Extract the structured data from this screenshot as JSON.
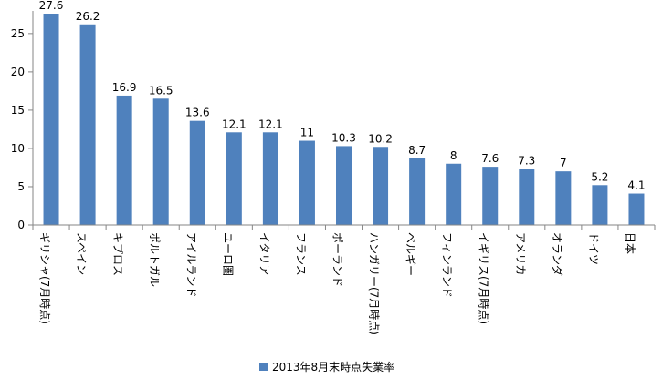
{
  "chart_data": {
    "type": "bar",
    "title": "",
    "xlabel": "",
    "ylabel": "",
    "categories": [
      "ギリシャ(7月時点)",
      "スペイン",
      "キプロス",
      "ポルトガル",
      "アイルランド",
      "ユーロ圏",
      "イタリア",
      "フランス",
      "ポーランド",
      "ハンガリー(7月時点)",
      "ベルギー",
      "フィンランド",
      "イギリス(7月時点)",
      "アメリカ",
      "オランダ",
      "ドイツ",
      "日本"
    ],
    "series": [
      {
        "name": "2013年8月末時点失業率",
        "values": [
          27.6,
          26.2,
          16.9,
          16.5,
          13.6,
          12.1,
          12.1,
          11,
          10.3,
          10.2,
          8.7,
          8,
          7.6,
          7.3,
          7,
          5.2,
          4.1
        ],
        "labels": [
          "27.6",
          "26.2",
          "16.9",
          "16.5",
          "13.6",
          "12.1",
          "12.1",
          "11",
          "10.3",
          "10.2",
          "8.7",
          "8",
          "7.6",
          "7.3",
          "7",
          "5.2",
          "4.1"
        ]
      }
    ],
    "ylim": [
      0,
      27.6
    ],
    "yticks": [
      "0",
      "5",
      "10",
      "15",
      "20",
      "25"
    ],
    "ytick_values": [
      0,
      5,
      10,
      15,
      20,
      25
    ],
    "grid": false,
    "legend_position": "bottom",
    "colors": {
      "bar": "#4F81BD",
      "axis": "#868686",
      "text": "#000000"
    }
  }
}
